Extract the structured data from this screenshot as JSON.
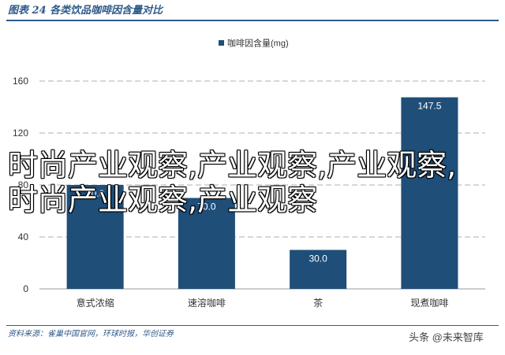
{
  "header": {
    "figure_title": "图表 24   各类饮品咖啡因含量对比"
  },
  "footer": {
    "source": "资料来源：雀巢中国官网，环球时报，华创证券",
    "watermark": "头条 @未来智库"
  },
  "overlay_text": "时尚产业观察,产业观察,产业观察,时尚产业观察,产业观察",
  "colors": {
    "bar": "#1f4e79",
    "accent": "#2f5a8a"
  },
  "chart_data": {
    "type": "bar",
    "categories": [
      "意式浓缩",
      "速溶咖啡",
      "茶",
      "现煮咖啡"
    ],
    "series": [
      {
        "name": "咖啡因含量(mg)",
        "values": [
          80.0,
          70.0,
          30.0,
          147.5
        ]
      }
    ],
    "data_labels": [
      "80.0",
      "70.0",
      "30.0",
      "147.5"
    ],
    "y_ticks": [
      "0",
      "40",
      "80",
      "120",
      "160"
    ],
    "ylim": [
      0,
      160
    ],
    "grid": true,
    "legend_position": "top-center"
  }
}
